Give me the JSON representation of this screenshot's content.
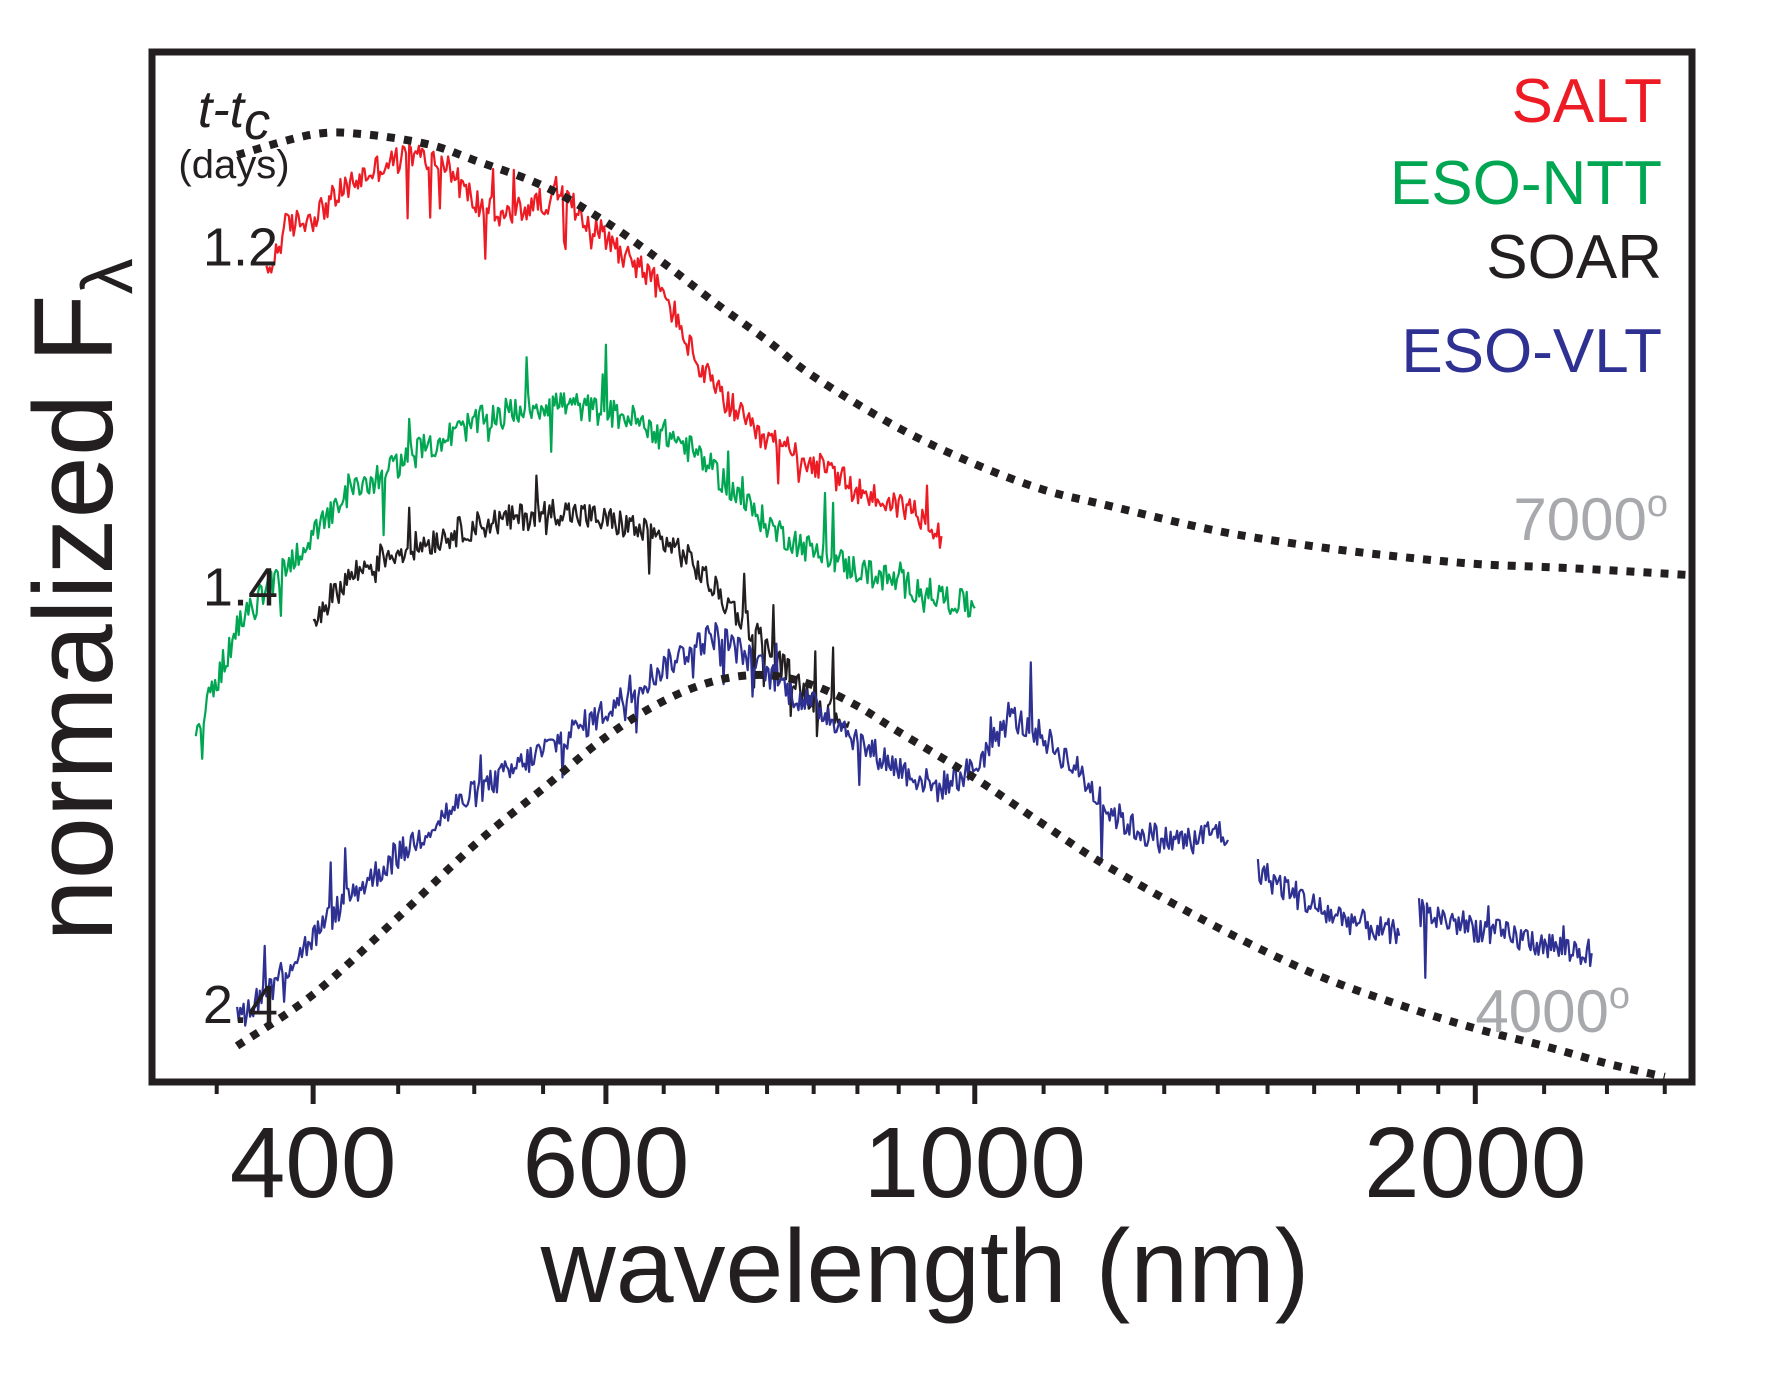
{
  "chart_data": {
    "type": "line",
    "xlabel": "wavelength (nm)",
    "ylabel": "normalized F",
    "ylabel_subscript": "λ",
    "x_scale": "log",
    "xlim": [
      320,
      2700
    ],
    "ylim": [
      0,
      10
    ],
    "x_ticks_major": [
      400,
      600,
      1000,
      2000
    ],
    "x_tick_labels": [
      "400",
      "600",
      "1000",
      "2000"
    ],
    "x_ticks_minor": [
      350,
      450,
      500,
      550,
      650,
      700,
      750,
      800,
      850,
      900,
      950,
      1100,
      1200,
      1300,
      1400,
      1500,
      1600,
      1700,
      1800,
      1900,
      2200,
      2400,
      2600
    ],
    "epoch_header": {
      "main": "t-t",
      "sub": "c",
      "unit": "(days)"
    },
    "epochs": [
      {
        "label": "1.2",
        "y": 8.1
      },
      {
        "label": "1.4",
        "y": 4.8
      },
      {
        "label": "2.4",
        "y": 0.75
      }
    ],
    "legend": [
      {
        "name": "SALT",
        "color": "#ed1c24"
      },
      {
        "name": "ESO-NTT",
        "color": "#00a651"
      },
      {
        "name": "SOAR",
        "color": "#231f20"
      },
      {
        "name": "ESO-VLT",
        "color": "#2e3192"
      }
    ],
    "series": [
      {
        "name": "SALT",
        "color": "#ed1c24",
        "x": [
          375,
          385,
          400,
          420,
          440,
          460,
          480,
          500,
          520,
          540,
          560,
          580,
          600,
          620,
          640,
          660,
          680,
          700,
          720,
          740,
          760,
          780,
          800,
          820,
          840,
          860,
          880,
          900,
          920,
          940,
          955
        ],
        "y": [
          7.8,
          8.3,
          8.4,
          8.7,
          8.9,
          9.0,
          8.9,
          8.55,
          8.4,
          8.5,
          8.6,
          8.45,
          8.2,
          8.0,
          7.8,
          7.45,
          7.0,
          6.7,
          6.5,
          6.25,
          6.2,
          6.1,
          6.0,
          5.9,
          5.8,
          5.7,
          5.65,
          5.6,
          5.55,
          5.45,
          5.3
        ]
      },
      {
        "name": "ESO-NTT",
        "color": "#00a651",
        "x": [
          340,
          350,
          360,
          380,
          400,
          420,
          440,
          460,
          480,
          500,
          520,
          540,
          560,
          580,
          600,
          620,
          640,
          660,
          680,
          700,
          720,
          740,
          760,
          780,
          800,
          820,
          840,
          860,
          880,
          900,
          920,
          940,
          960,
          980,
          1000
        ],
        "y": [
          3.4,
          3.9,
          4.4,
          4.9,
          5.3,
          5.7,
          5.9,
          6.1,
          6.25,
          6.4,
          6.5,
          6.55,
          6.6,
          6.55,
          6.5,
          6.45,
          6.35,
          6.25,
          6.1,
          5.9,
          5.7,
          5.5,
          5.35,
          5.25,
          5.15,
          5.1,
          5.0,
          4.95,
          4.9,
          4.85,
          4.8,
          4.75,
          4.7,
          4.65,
          4.6
        ]
      },
      {
        "name": "SOAR",
        "color": "#231f20",
        "x": [
          400,
          420,
          440,
          460,
          480,
          500,
          520,
          540,
          560,
          580,
          600,
          620,
          640,
          660,
          680,
          700,
          720,
          740,
          760,
          780,
          800,
          820,
          840
        ],
        "y": [
          4.5,
          4.9,
          5.1,
          5.2,
          5.3,
          5.4,
          5.45,
          5.5,
          5.55,
          5.5,
          5.45,
          5.4,
          5.3,
          5.2,
          5.0,
          4.75,
          4.55,
          4.35,
          4.1,
          3.9,
          3.7,
          3.6,
          3.5
        ]
      },
      {
        "name": "ESO-VLT",
        "color": "#2e3192",
        "x": [
          360,
          380,
          400,
          420,
          450,
          480,
          500,
          530,
          560,
          600,
          640,
          680,
          700,
          740,
          780,
          820,
          860,
          900,
          950,
          1000,
          1050,
          1100,
          1150,
          1200,
          1250,
          1300,
          1350,
          1400,
          1420,
          null,
          1480,
          1550,
          1620,
          1700,
          1770,
          1800,
          null,
          1850,
          1950,
          2050,
          2150,
          2250,
          2350
        ],
        "y": [
          0.6,
          1.0,
          1.4,
          1.8,
          2.2,
          2.6,
          2.8,
          3.05,
          3.3,
          3.6,
          3.95,
          4.25,
          4.35,
          4.05,
          3.75,
          3.55,
          3.25,
          3.05,
          2.85,
          3.05,
          3.55,
          3.35,
          3.05,
          2.65,
          2.45,
          2.35,
          2.35,
          2.45,
          2.35,
          null,
          2.05,
          1.85,
          1.65,
          1.55,
          1.45,
          1.42,
          null,
          1.65,
          1.55,
          1.45,
          1.38,
          1.3,
          1.25
        ]
      }
    ],
    "blackbody_fits": [
      {
        "label": "7000",
        "superscript": "o",
        "temperature": 7000,
        "x": [
          360,
          400,
          430,
          470,
          500,
          550,
          600,
          650,
          700,
          750,
          800,
          900,
          1000,
          1100,
          1200,
          1400,
          1600,
          1800,
          2000,
          2200,
          2400,
          2700
        ],
        "y": [
          9.0,
          9.2,
          9.2,
          9.1,
          8.95,
          8.7,
          8.35,
          7.95,
          7.55,
          7.2,
          6.85,
          6.35,
          6.0,
          5.75,
          5.6,
          5.35,
          5.2,
          5.1,
          5.03,
          5.0,
          4.97,
          4.92
        ]
      },
      {
        "label": "4000",
        "superscript": "o",
        "temperature": 4000,
        "x": [
          360,
          400,
          450,
          500,
          550,
          600,
          650,
          700,
          750,
          800,
          850,
          900,
          1000,
          1100,
          1200,
          1400,
          1600,
          1800,
          2000,
          2200,
          2400,
          2600
        ],
        "y": [
          0.35,
          0.85,
          1.6,
          2.3,
          2.85,
          3.35,
          3.7,
          3.9,
          3.95,
          3.85,
          3.65,
          3.4,
          2.95,
          2.5,
          2.1,
          1.5,
          1.05,
          0.75,
          0.52,
          0.35,
          0.18,
          0.05
        ]
      }
    ]
  }
}
